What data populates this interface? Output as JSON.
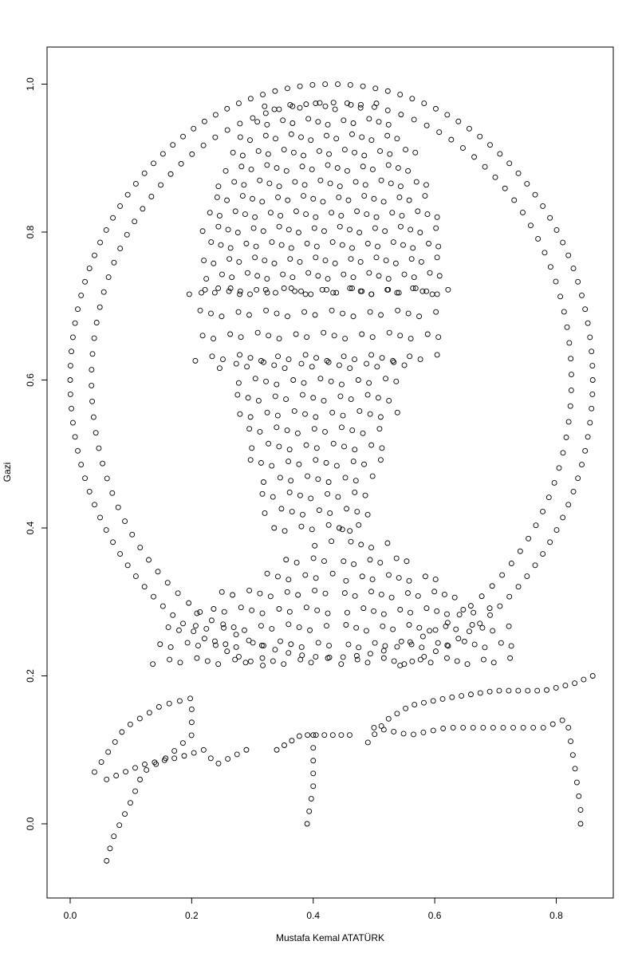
{
  "chart_data": {
    "type": "scatter",
    "title": "",
    "xlabel": "Mustafa Kemal ATATÜRK",
    "ylabel": "Gazi",
    "xlim": [
      -0.04,
      0.89
    ],
    "ylim": [
      -0.1,
      1.05
    ],
    "xticks": [
      0.0,
      0.2,
      0.4,
      0.6,
      0.8
    ],
    "yticks": [
      0.0,
      0.2,
      0.4,
      0.6,
      0.8,
      1.0
    ],
    "xtick_labels": [
      "0.0",
      "0.2",
      "0.4",
      "0.6",
      "0.8"
    ],
    "ytick_labels": [
      "0.0",
      "0.2",
      "0.4",
      "0.6",
      "0.8",
      "1.0"
    ],
    "grid": false,
    "marker": "open-circle",
    "marker_color": "#000000",
    "series": [
      {
        "groups": [
          {
            "kind": "ellipse",
            "center": [
              0.43,
              0.6
            ],
            "radii": [
              0.43,
              0.4
            ],
            "count": 130
          },
          {
            "kind": "ellipse",
            "center": [
              0.43,
              0.6
            ],
            "radii": [
              0.395,
              0.375
            ],
            "count": 110
          },
          {
            "kind": "grid",
            "x_range": [
              0.2,
              0.62
            ],
            "y_range": [
              0.72,
              0.97
            ],
            "cols": 22,
            "rows": 13,
            "shape": "dome"
          },
          {
            "kind": "grid",
            "x_range": [
              0.21,
              0.6
            ],
            "y_range": [
              0.63,
              0.72
            ],
            "cols": 19,
            "rows": 4,
            "shape": "rect"
          },
          {
            "kind": "grid",
            "x_range": [
              0.25,
              0.55
            ],
            "y_range": [
              0.4,
              0.62
            ],
            "cols": 15,
            "rows": 11,
            "shape": "face"
          },
          {
            "kind": "grid",
            "x_range": [
              0.14,
              0.42
            ],
            "y_range": [
              0.22,
              0.38
            ],
            "cols": 14,
            "rows": 8,
            "shape": "shoulder-left"
          },
          {
            "kind": "grid",
            "x_range": [
              0.45,
              0.72
            ],
            "y_range": [
              0.22,
              0.4
            ],
            "cols": 14,
            "rows": 9,
            "shape": "shoulder-right"
          },
          {
            "kind": "curve",
            "points": [
              [
                0.04,
                0.07
              ],
              [
                0.09,
                0.13
              ],
              [
                0.15,
                0.16
              ],
              [
                0.2,
                0.17
              ],
              [
                0.2,
                0.12
              ],
              [
                0.16,
                0.09
              ],
              [
                0.12,
                0.07
              ],
              [
                0.1,
                0.03
              ],
              [
                0.07,
                -0.02
              ],
              [
                0.06,
                -0.05
              ]
            ],
            "count": 28
          },
          {
            "kind": "curve",
            "points": [
              [
                0.06,
                0.06
              ],
              [
                0.12,
                0.08
              ],
              [
                0.18,
                0.09
              ],
              [
                0.22,
                0.1
              ],
              [
                0.24,
                0.08
              ],
              [
                0.29,
                0.1
              ]
            ],
            "count": 16
          },
          {
            "kind": "curve",
            "points": [
              [
                0.34,
                0.1
              ],
              [
                0.38,
                0.12
              ],
              [
                0.42,
                0.12
              ],
              [
                0.46,
                0.12
              ]
            ],
            "count": 10
          },
          {
            "kind": "curve",
            "points": [
              [
                0.4,
                0.12
              ],
              [
                0.4,
                0.05
              ],
              [
                0.39,
                0.0
              ]
            ],
            "count": 8
          },
          {
            "kind": "curve",
            "points": [
              [
                0.49,
                0.11
              ],
              [
                0.52,
                0.14
              ],
              [
                0.56,
                0.16
              ],
              [
                0.62,
                0.17
              ],
              [
                0.7,
                0.18
              ],
              [
                0.78,
                0.18
              ],
              [
                0.83,
                0.19
              ],
              [
                0.86,
                0.2
              ]
            ],
            "count": 26
          },
          {
            "kind": "curve",
            "points": [
              [
                0.5,
                0.13
              ],
              [
                0.56,
                0.12
              ],
              [
                0.62,
                0.13
              ],
              [
                0.7,
                0.13
              ],
              [
                0.78,
                0.13
              ],
              [
                0.81,
                0.14
              ]
            ],
            "count": 20
          },
          {
            "kind": "curve",
            "points": [
              [
                0.82,
                0.13
              ],
              [
                0.83,
                0.08
              ],
              [
                0.84,
                0.02
              ],
              [
                0.84,
                0.0
              ]
            ],
            "count": 8
          }
        ]
      }
    ]
  }
}
